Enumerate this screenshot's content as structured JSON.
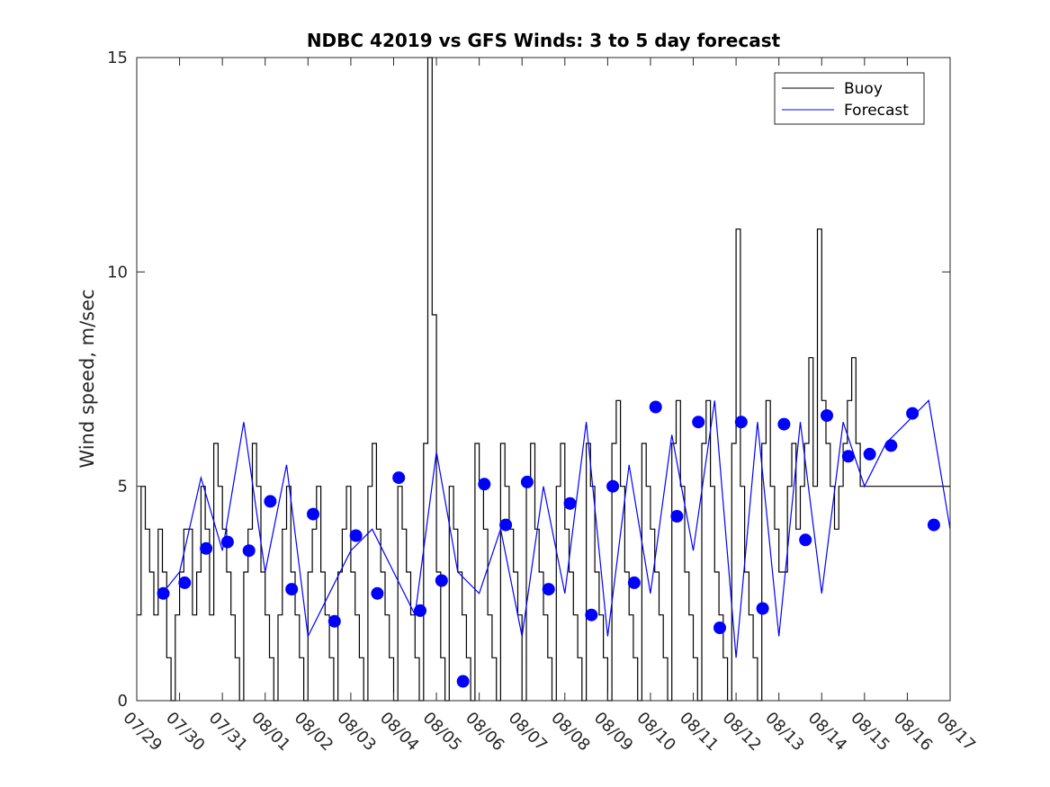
{
  "chart_data": {
    "type": "line",
    "title": "NDBC 42019 vs GFS Winds: 3 to 5 day forecast",
    "xlabel": "",
    "ylabel": "Wind speed, m/sec",
    "xlim": [
      0,
      19
    ],
    "ylim": [
      0,
      15
    ],
    "yticks": [
      0,
      5,
      10,
      15
    ],
    "xtick_labels": [
      "07/29",
      "07/30",
      "07/31",
      "08/01",
      "08/02",
      "08/03",
      "08/04",
      "08/05",
      "08/06",
      "08/07",
      "08/08",
      "08/09",
      "08/10",
      "08/11",
      "08/12",
      "08/13",
      "08/14",
      "08/15",
      "08/16",
      "08/17"
    ],
    "colors": {
      "buoy": "#000000",
      "forecast": "#0000ff"
    },
    "legend": {
      "position": "top-right",
      "entries": [
        "Buoy",
        "Forecast"
      ]
    },
    "series": [
      {
        "name": "Buoy",
        "x": [
          0,
          0.1,
          0.2,
          0.3,
          0.4,
          0.5,
          0.6,
          0.7,
          0.8,
          0.9,
          1.0,
          1.1,
          1.2,
          1.3,
          1.4,
          1.5,
          1.6,
          1.7,
          1.8,
          1.9,
          2.0,
          2.1,
          2.2,
          2.3,
          2.4,
          2.5,
          2.6,
          2.7,
          2.8,
          2.9,
          3.0,
          3.1,
          3.2,
          3.3,
          3.4,
          3.5,
          3.6,
          3.7,
          3.8,
          3.9,
          4.0,
          4.1,
          4.2,
          4.3,
          4.4,
          4.5,
          4.6,
          4.7,
          4.8,
          4.9,
          5.0,
          5.1,
          5.2,
          5.3,
          5.4,
          5.5,
          5.6,
          5.7,
          5.8,
          5.9,
          6.0,
          6.1,
          6.2,
          6.3,
          6.4,
          6.5,
          6.6,
          6.7,
          6.8,
          6.9,
          7.0,
          7.1,
          7.2,
          7.3,
          7.4,
          7.5,
          7.6,
          7.7,
          7.8,
          7.9,
          8.0,
          8.1,
          8.2,
          8.3,
          8.4,
          8.5,
          8.6,
          8.7,
          8.8,
          8.9,
          9.0,
          9.1,
          9.2,
          9.3,
          9.4,
          9.5,
          9.6,
          9.7,
          9.8,
          9.9,
          10.0,
          10.1,
          10.2,
          10.3,
          10.4,
          10.5,
          10.6,
          10.7,
          10.8,
          10.9,
          11.0,
          11.1,
          11.2,
          11.3,
          11.4,
          11.5,
          11.6,
          11.7,
          11.8,
          11.9,
          12.0,
          12.1,
          12.2,
          12.3,
          12.4,
          12.5,
          12.6,
          12.7,
          12.8,
          12.9,
          13.0,
          13.1,
          13.2,
          13.3,
          13.4,
          13.5,
          13.6,
          13.7,
          13.8,
          13.9,
          14.0,
          14.1,
          14.2,
          14.3,
          14.4,
          14.5,
          14.6,
          14.7,
          14.8,
          14.9,
          15.0,
          15.1,
          15.2,
          15.3,
          15.4,
          15.5,
          15.6,
          15.7,
          15.8,
          15.9,
          16.0,
          16.1,
          16.2,
          16.3,
          16.4,
          16.5,
          16.6,
          16.7,
          16.8,
          16.9,
          17.0,
          17.1,
          17.2,
          17.3,
          17.4,
          17.5,
          17.6,
          17.7,
          17.8,
          17.9,
          18.0,
          18.1,
          18.2,
          18.3,
          18.4,
          18.5,
          18.6,
          18.7,
          18.8,
          18.9,
          19.0
        ],
        "values": [
          2,
          5,
          4,
          3,
          2,
          4,
          3,
          1,
          0,
          2,
          3,
          4,
          4,
          2,
          3,
          5,
          4,
          2,
          6,
          5,
          4,
          3,
          2,
          1,
          0,
          3,
          4,
          6,
          5,
          3,
          2,
          1,
          0,
          2,
          4,
          5,
          3,
          2,
          1,
          0,
          3,
          4,
          5,
          3,
          2,
          1,
          0,
          3,
          4,
          5,
          3,
          2,
          1,
          0,
          5,
          6,
          4,
          3,
          2,
          1,
          0,
          5,
          4,
          3,
          2,
          1,
          0,
          6,
          15,
          9,
          3,
          1,
          0,
          5,
          4,
          3,
          2,
          1,
          0,
          6,
          5,
          4,
          2,
          1,
          0,
          6,
          5,
          4,
          3,
          2,
          0,
          5,
          6,
          4,
          3,
          2,
          1,
          0,
          5,
          6,
          4,
          3,
          2,
          1,
          0,
          6,
          5,
          3,
          2,
          1,
          0,
          6,
          7,
          5,
          3,
          2,
          1,
          0,
          6,
          5,
          4,
          3,
          2,
          1,
          0,
          6,
          7,
          5,
          3,
          2,
          1,
          0,
          6,
          7,
          5,
          3,
          2,
          1,
          0,
          6,
          11,
          5,
          3,
          2,
          1,
          0,
          6,
          7,
          5,
          4,
          3,
          3,
          5,
          6,
          4,
          5,
          6,
          8,
          5,
          11,
          7,
          6,
          5,
          4,
          5,
          6,
          7,
          8,
          6,
          5,
          5,
          5,
          5,
          5,
          5,
          5,
          5,
          5,
          5,
          5,
          5,
          5,
          5,
          5,
          5,
          5,
          5,
          5,
          5,
          5,
          5
        ]
      },
      {
        "name": "Forecast",
        "x": [
          0.6,
          1.0,
          1.5,
          2.0,
          2.5,
          3.0,
          3.5,
          4.0,
          4.5,
          5.0,
          5.5,
          6.0,
          6.5,
          7.0,
          7.5,
          8.0,
          8.5,
          9.0,
          9.5,
          10.0,
          10.5,
          11.0,
          11.5,
          12.0,
          12.5,
          13.0,
          13.5,
          14.0,
          14.5,
          15.0,
          15.5,
          16.0,
          16.5,
          17.0,
          17.5,
          18.0,
          18.5,
          19.0
        ],
        "values": [
          2.5,
          3.0,
          5.2,
          3.5,
          6.5,
          3.0,
          5.5,
          1.5,
          2.5,
          3.5,
          4.0,
          3.0,
          2.0,
          5.8,
          3.0,
          2.5,
          4.0,
          1.5,
          5.0,
          2.5,
          6.5,
          1.5,
          5.5,
          2.5,
          6.2,
          3.5,
          7.0,
          1.0,
          6.5,
          1.5,
          6.5,
          2.5,
          6.5,
          5.0,
          6.0,
          6.5,
          7.0,
          4.0
        ]
      }
    ],
    "markers": {
      "name": "Forecast",
      "x": [
        0.62,
        1.12,
        1.62,
        2.12,
        2.62,
        3.12,
        3.62,
        4.12,
        4.62,
        5.12,
        5.62,
        6.12,
        6.62,
        7.12,
        7.62,
        8.12,
        8.62,
        9.12,
        9.62,
        10.12,
        10.62,
        11.12,
        11.62,
        12.12,
        12.62,
        13.12,
        13.62,
        14.12,
        14.62,
        15.12,
        15.62,
        16.12,
        16.62,
        17.12,
        17.62,
        18.12,
        18.62
      ],
      "values": [
        2.5,
        2.75,
        3.55,
        3.7,
        3.5,
        4.65,
        2.6,
        4.35,
        1.85,
        3.85,
        2.5,
        5.2,
        2.1,
        2.8,
        0.45,
        5.05,
        4.1,
        5.1,
        2.6,
        4.6,
        2.0,
        5.0,
        2.75,
        6.85,
        4.3,
        6.5,
        1.7,
        6.5,
        2.15,
        6.45,
        3.75,
        6.65,
        5.7,
        5.75,
        5.95,
        6.7,
        4.1
      ]
    }
  }
}
